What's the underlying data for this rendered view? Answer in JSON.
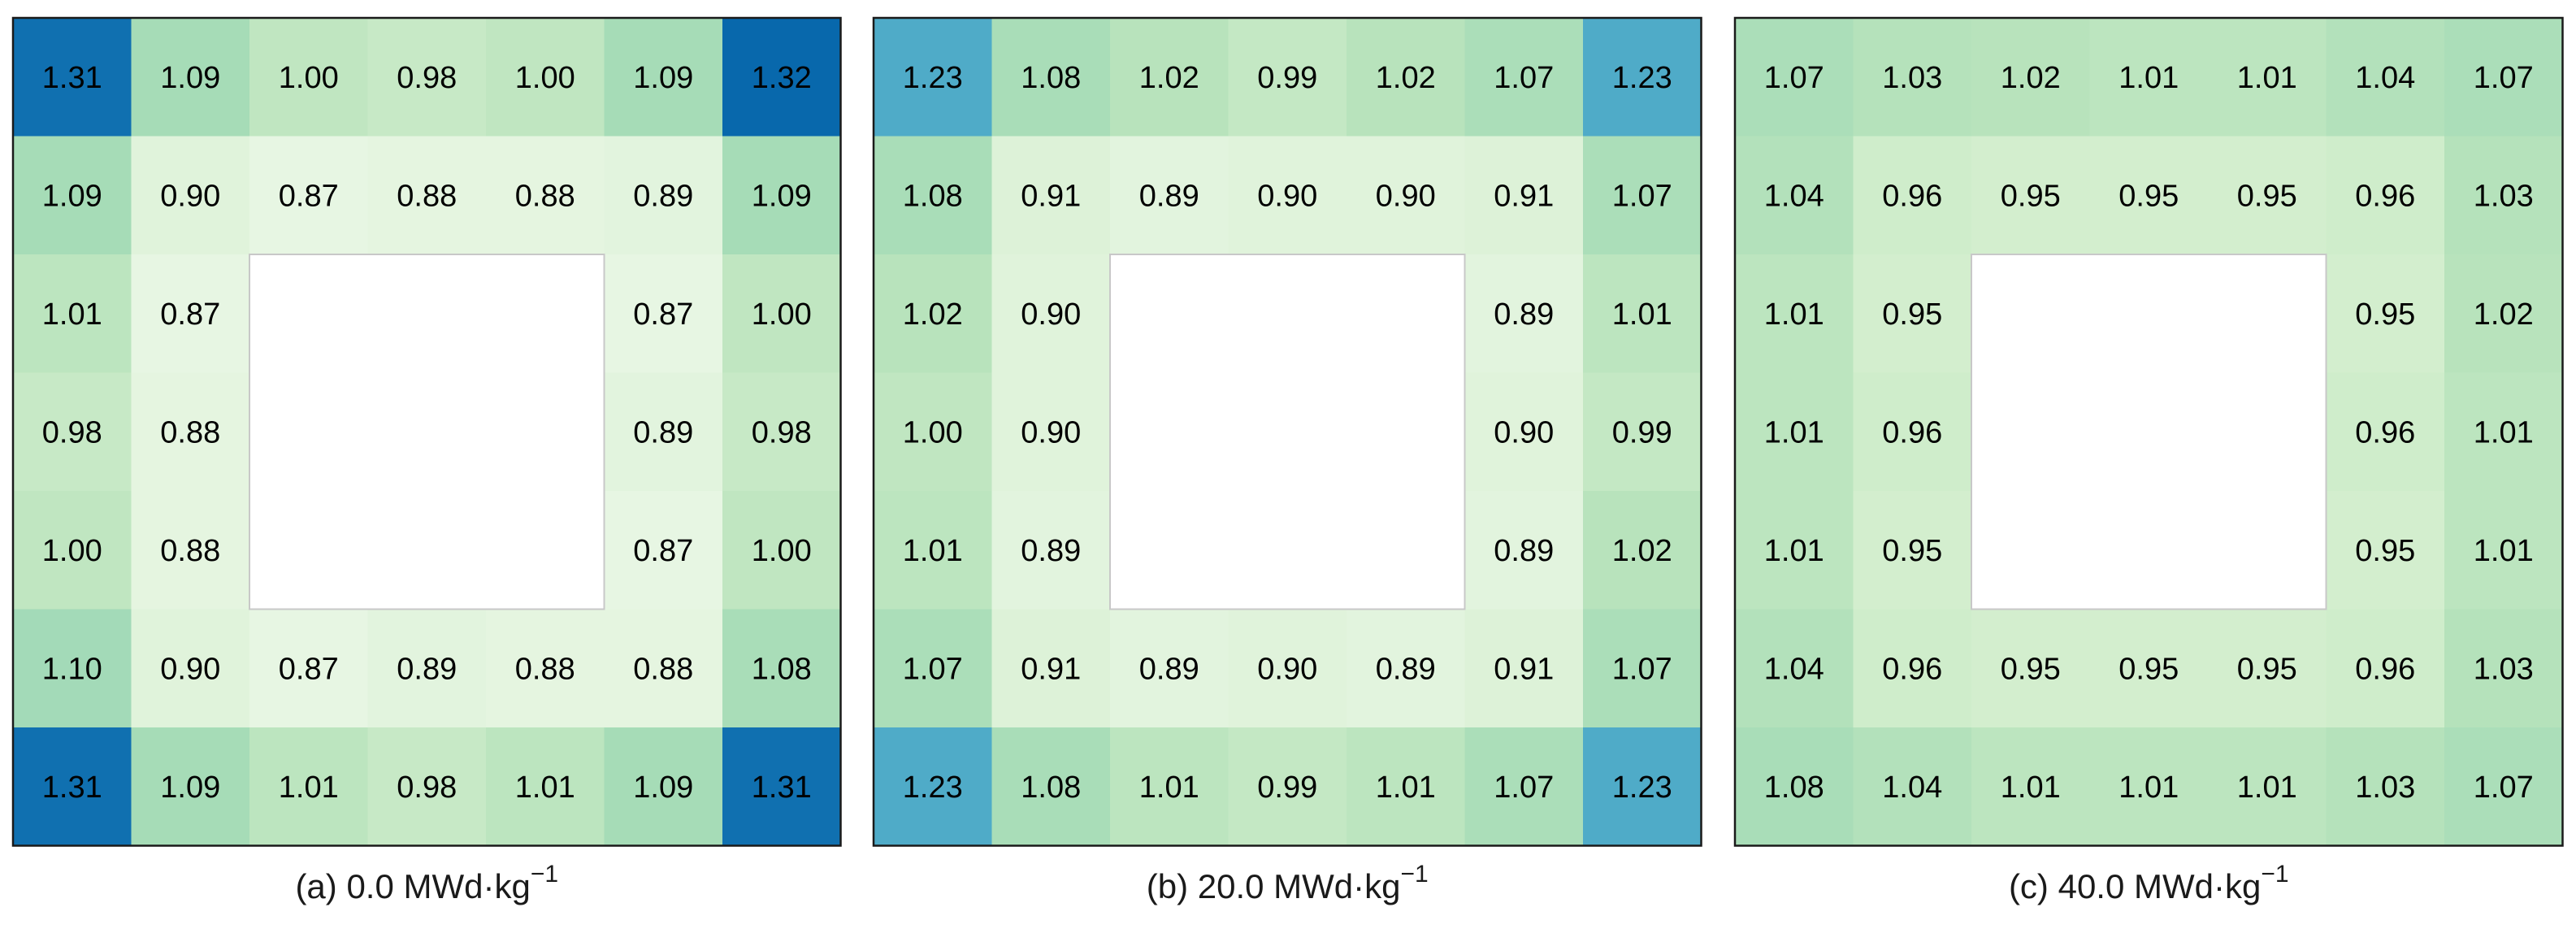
{
  "chart_data": [
    {
      "type": "heatmap",
      "caption_prefix": "(a) 0.0 MWd·kg",
      "caption_exponent": "−1",
      "grid_size": 7,
      "empty_region": {
        "rows": [
          2,
          4
        ],
        "cols": [
          2,
          4
        ]
      },
      "values": [
        [
          1.31,
          1.09,
          1.0,
          0.98,
          1.0,
          1.09,
          1.32
        ],
        [
          1.09,
          0.9,
          0.87,
          0.88,
          0.88,
          0.89,
          1.09
        ],
        [
          1.01,
          0.87,
          null,
          null,
          null,
          0.87,
          1.0
        ],
        [
          0.98,
          0.88,
          null,
          null,
          null,
          0.89,
          0.98
        ],
        [
          1.0,
          0.88,
          null,
          null,
          null,
          0.87,
          1.0
        ],
        [
          1.1,
          0.9,
          0.87,
          0.89,
          0.88,
          0.88,
          1.08
        ],
        [
          1.31,
          1.09,
          1.01,
          0.98,
          1.01,
          1.09,
          1.31
        ]
      ]
    },
    {
      "type": "heatmap",
      "caption_prefix": "(b) 20.0 MWd·kg",
      "caption_exponent": "−1",
      "grid_size": 7,
      "empty_region": {
        "rows": [
          2,
          4
        ],
        "cols": [
          2,
          4
        ]
      },
      "values": [
        [
          1.23,
          1.08,
          1.02,
          0.99,
          1.02,
          1.07,
          1.23
        ],
        [
          1.08,
          0.91,
          0.89,
          0.9,
          0.9,
          0.91,
          1.07
        ],
        [
          1.02,
          0.9,
          null,
          null,
          null,
          0.89,
          1.01
        ],
        [
          1.0,
          0.9,
          null,
          null,
          null,
          0.9,
          0.99
        ],
        [
          1.01,
          0.89,
          null,
          null,
          null,
          0.89,
          1.02
        ],
        [
          1.07,
          0.91,
          0.89,
          0.9,
          0.89,
          0.91,
          1.07
        ],
        [
          1.23,
          1.08,
          1.01,
          0.99,
          1.01,
          1.07,
          1.23
        ]
      ]
    },
    {
      "type": "heatmap",
      "caption_prefix": "(c) 40.0 MWd·kg",
      "caption_exponent": "−1",
      "grid_size": 7,
      "empty_region": {
        "rows": [
          2,
          4
        ],
        "cols": [
          2,
          4
        ]
      },
      "values": [
        [
          1.07,
          1.03,
          1.02,
          1.01,
          1.01,
          1.04,
          1.07
        ],
        [
          1.04,
          0.96,
          0.95,
          0.95,
          0.95,
          0.96,
          1.03
        ],
        [
          1.01,
          0.95,
          null,
          null,
          null,
          0.95,
          1.02
        ],
        [
          1.01,
          0.96,
          null,
          null,
          null,
          0.96,
          1.01
        ],
        [
          1.01,
          0.95,
          null,
          null,
          null,
          0.95,
          1.01
        ],
        [
          1.04,
          0.96,
          0.95,
          0.95,
          0.95,
          0.96,
          1.03
        ],
        [
          1.08,
          1.04,
          1.01,
          1.01,
          1.01,
          1.03,
          1.07
        ]
      ]
    }
  ],
  "color_scale": {
    "name": "GnBu",
    "value_range": [
      0.87,
      1.32
    ],
    "stops": [
      "#e7f6e3",
      "#d5efcf",
      "#b8e3bc",
      "#a5dbb7",
      "#80cdc1",
      "#43a2ca",
      "#0868ac"
    ]
  }
}
